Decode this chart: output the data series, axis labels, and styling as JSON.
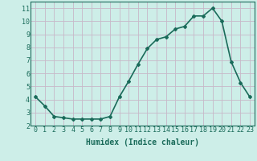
{
  "x": [
    0,
    1,
    2,
    3,
    4,
    5,
    6,
    7,
    8,
    9,
    10,
    11,
    12,
    13,
    14,
    15,
    16,
    17,
    18,
    19,
    20,
    21,
    22,
    23
  ],
  "y": [
    4.2,
    3.5,
    2.7,
    2.6,
    2.5,
    2.5,
    2.5,
    2.5,
    2.7,
    4.2,
    5.4,
    6.7,
    7.9,
    8.6,
    8.8,
    9.4,
    9.6,
    10.4,
    10.4,
    11.0,
    10.0,
    6.9,
    5.3,
    4.2
  ],
  "line_color": "#1a6b5a",
  "marker": "D",
  "marker_size": 2,
  "bg_color": "#cdeee8",
  "grid_color": "#c8b8c8",
  "xlabel": "Humidex (Indice chaleur)",
  "xlim": [
    -0.5,
    23.5
  ],
  "ylim": [
    2,
    11.5
  ],
  "yticks": [
    2,
    3,
    4,
    5,
    6,
    7,
    8,
    9,
    10,
    11
  ],
  "xticks": [
    0,
    1,
    2,
    3,
    4,
    5,
    6,
    7,
    8,
    9,
    10,
    11,
    12,
    13,
    14,
    15,
    16,
    17,
    18,
    19,
    20,
    21,
    22,
    23
  ],
  "xlabel_fontsize": 7,
  "tick_fontsize": 6,
  "line_width": 1.2
}
